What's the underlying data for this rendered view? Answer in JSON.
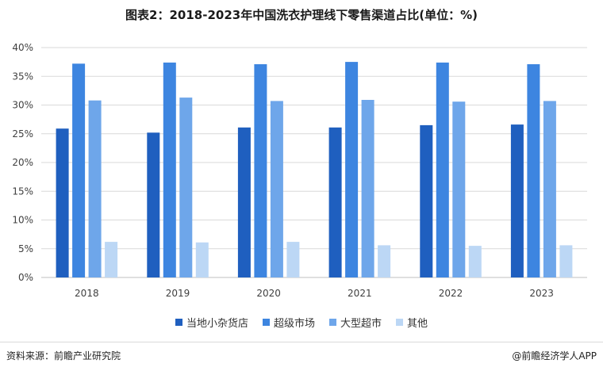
{
  "title": "图表2：2018-2023年中国洗衣护理线下零售渠道占比(单位：%)",
  "source": "资料来源：前瞻产业研究院",
  "credit": "@前瞻经济学人APP",
  "colors": {
    "series": [
      "#1f5fbf",
      "#3d85e0",
      "#6ea6ea",
      "#bcd7f5"
    ],
    "grid": "#d9d9d9",
    "axis_text": "#404040"
  },
  "chart_data": {
    "type": "bar",
    "title": "图表2：2018-2023年中国洗衣护理线下零售渠道占比(单位：%)",
    "categories": [
      "2018",
      "2019",
      "2020",
      "2021",
      "2022",
      "2023"
    ],
    "series": [
      {
        "name": "当地小杂货店",
        "values": [
          25.9,
          25.2,
          26.1,
          26.1,
          26.5,
          26.6
        ]
      },
      {
        "name": "超级市场",
        "values": [
          37.2,
          37.4,
          37.1,
          37.5,
          37.4,
          37.1
        ]
      },
      {
        "name": "大型超市",
        "values": [
          30.8,
          31.3,
          30.7,
          30.9,
          30.6,
          30.7
        ]
      },
      {
        "name": "其他",
        "values": [
          6.2,
          6.1,
          6.2,
          5.6,
          5.5,
          5.6
        ]
      }
    ],
    "yticks": [
      "0%",
      "5%",
      "10%",
      "15%",
      "20%",
      "25%",
      "30%",
      "35%",
      "40%"
    ],
    "ylim": [
      0,
      40
    ],
    "xlabel": "",
    "ylabel": "",
    "grid": true,
    "legend_position": "bottom"
  }
}
